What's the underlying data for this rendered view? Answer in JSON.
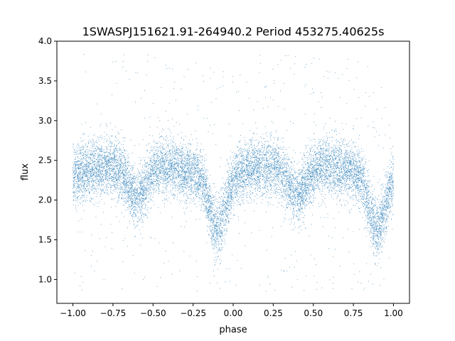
{
  "chart_data": {
    "type": "scatter",
    "title": "1SWASPJ151621.91-264940.2 Period 453275.40625s",
    "xlabel": "phase",
    "ylabel": "flux",
    "xlim": [
      -1.1,
      1.1
    ],
    "ylim": [
      0.7,
      4.0
    ],
    "x_ticks": [
      -1.0,
      -0.75,
      -0.5,
      -0.25,
      0.0,
      0.25,
      0.5,
      0.75,
      1.0
    ],
    "x_tick_labels": [
      "−1.00",
      "−0.75",
      "−0.50",
      "−0.25",
      "0.00",
      "0.25",
      "0.50",
      "0.75",
      "1.00"
    ],
    "y_ticks": [
      1.0,
      1.5,
      2.0,
      2.5,
      3.0,
      3.5,
      4.0
    ],
    "y_tick_labels": [
      "1.0",
      "1.5",
      "2.0",
      "2.5",
      "3.0",
      "3.5",
      "4.0"
    ],
    "grid": false,
    "legend": "none",
    "point_color": "#1f77b4",
    "series": [
      {
        "x_range": [
          -1.0,
          1.0
        ],
        "baseline_flux": 2.4,
        "baseline_spread": 0.18,
        "primary_minimum": {
          "phase": -0.1,
          "flux": 1.7,
          "width": 0.05
        },
        "secondary_minimum": {
          "phase": 0.4,
          "flux": 2.0,
          "width": 0.06
        },
        "outlier_range": [
          0.85,
          3.85
        ]
      }
    ]
  }
}
